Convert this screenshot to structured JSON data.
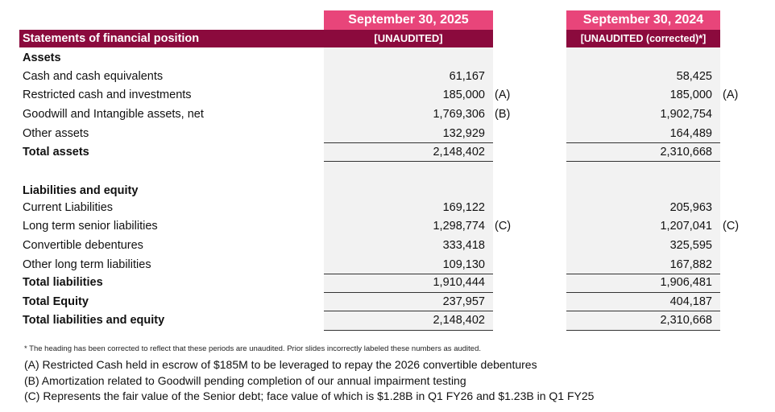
{
  "columns": {
    "c2025": {
      "date": "September 30, 2025",
      "status": "[UNAUDITED]"
    },
    "c2024": {
      "date": "September 30, 2024",
      "status": "[UNAUDITED (corrected)*]"
    }
  },
  "title": "Statements of financial position",
  "sections": {
    "assets": "Assets",
    "liabilities": "Liabilities and equity"
  },
  "rows": [
    {
      "label": "Cash and cash equivalents",
      "v2025": "61,167",
      "n2025": "",
      "v2024": "58,425",
      "n2024": ""
    },
    {
      "label": "Restricted cash and investments",
      "v2025": "185,000",
      "n2025": "(A)",
      "v2024": "185,000",
      "n2024": "(A)"
    },
    {
      "label": "Goodwill and Intangible assets, net",
      "v2025": "1,769,306",
      "n2025": "(B)",
      "v2024": "1,902,754",
      "n2024": ""
    },
    {
      "label": "Other assets",
      "v2025": "132,929",
      "n2025": "",
      "v2024": "164,489",
      "n2024": ""
    },
    {
      "label": "Total assets",
      "v2025": "2,148,402",
      "n2025": "",
      "v2024": "2,310,668",
      "n2024": ""
    },
    {
      "label": "Current Liabilities",
      "v2025": "169,122",
      "n2025": "",
      "v2024": "205,963",
      "n2024": ""
    },
    {
      "label": "Long term senior liabilities",
      "v2025": "1,298,774",
      "n2025": "(C)",
      "v2024": "1,207,041",
      "n2024": "(C)"
    },
    {
      "label": "Convertible debentures",
      "v2025": "333,418",
      "n2025": "",
      "v2024": "325,595",
      "n2024": ""
    },
    {
      "label": "Other long term liabilities",
      "v2025": "109,130",
      "n2025": "",
      "v2024": "167,882",
      "n2024": ""
    },
    {
      "label": "Total liabilities",
      "v2025": "1,910,444",
      "n2025": "",
      "v2024": "1,906,481",
      "n2024": ""
    },
    {
      "label": "Total Equity",
      "v2025": "237,957",
      "n2025": "",
      "v2024": "404,187",
      "n2024": ""
    },
    {
      "label": "Total liabilities and equity",
      "v2025": "2,148,402",
      "n2025": "",
      "v2024": "2,310,668",
      "n2024": ""
    }
  ],
  "footnotes": {
    "star": "* The heading has been corrected to reflect that these periods are unaudited. Prior slides incorrectly labeled these numbers as audited.",
    "a": "(A) Restricted Cash held in escrow of $185M to be leveraged to repay the 2026 convertible debentures",
    "b": "(B) Amortization related to Goodwill pending completion of our annual impairment testing",
    "c": "(C) Represents the fair value of the Senior debt; face value of which is $1.28B in Q1 FY26 and $1.23B in Q1 FY25"
  }
}
